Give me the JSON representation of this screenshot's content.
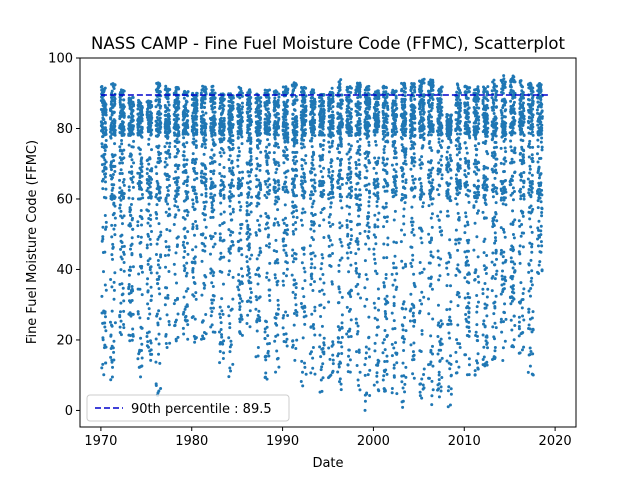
{
  "chart_data": {
    "type": "scatter",
    "title": "NASS CAMP - Fine Fuel Moisture Code (FFMC), Scatterplot",
    "xlabel": "Date",
    "ylabel": "Fine Fuel Moisture Code (FFMC)",
    "xlim": [
      1967.7,
      2022.3
    ],
    "ylim": [
      -4.7,
      100
    ],
    "x_ticks": [
      1970,
      1980,
      1990,
      2000,
      2010,
      2020
    ],
    "x_tick_labels": [
      "1970",
      "1980",
      "1990",
      "2000",
      "2010",
      "2020"
    ],
    "y_ticks": [
      0,
      20,
      40,
      60,
      80,
      100
    ],
    "y_tick_labels": [
      "0",
      "20",
      "40",
      "60",
      "80",
      "100"
    ],
    "grid": false,
    "legend": {
      "location": "lower-left",
      "entries": [
        "90th percentile : 89.5"
      ]
    },
    "series": [
      {
        "type": "scatter",
        "color": "#1f77b4",
        "season_years": [
          1971,
          1972,
          1973,
          1974,
          1975,
          1976,
          1977,
          1978,
          1979,
          1980,
          1981,
          1982,
          1983,
          1984,
          1985,
          1986,
          1987,
          1988,
          1989,
          1990,
          1991,
          1992,
          1993,
          1994,
          1995,
          1996,
          1997,
          1998,
          1999,
          2000,
          2001,
          2002,
          2003,
          2004,
          2005,
          2006,
          2007,
          2008,
          2009,
          2010,
          2011,
          2012,
          2013,
          2014,
          2015,
          2016,
          2017,
          2018,
          2019
        ],
        "season_max": [
          92,
          93,
          91,
          89,
          88,
          88,
          93,
          92,
          92,
          91,
          90,
          92,
          92,
          90,
          90,
          92,
          91,
          90,
          91,
          91,
          92,
          93,
          92,
          91,
          90,
          92,
          94,
          92,
          93,
          92,
          91,
          92,
          91,
          93,
          93,
          94,
          94,
          92,
          84,
          93,
          92,
          92,
          92,
          94,
          95,
          95,
          94,
          93,
          93
        ],
        "season_min": [
          7,
          8,
          20,
          18,
          8,
          14,
          4,
          15,
          18,
          20,
          18,
          20,
          22,
          12,
          9,
          20,
          22,
          15,
          8,
          10,
          18,
          12,
          6,
          10,
          4,
          8,
          4,
          10,
          5,
          0,
          4,
          4,
          2,
          0,
          5,
          2,
          0,
          1,
          0,
          7,
          10,
          10,
          12,
          14,
          14,
          18,
          16,
          10,
          38
        ],
        "x_range": [
          1970.0,
          2019.3
        ],
        "y_range": [
          0,
          95
        ]
      },
      {
        "type": "line",
        "name": "90th percentile : 89.5",
        "style": "dashed",
        "color": "#0000cc",
        "x": [
          1970.0,
          2019.3
        ],
        "y": [
          89.5,
          89.5
        ]
      }
    ]
  }
}
